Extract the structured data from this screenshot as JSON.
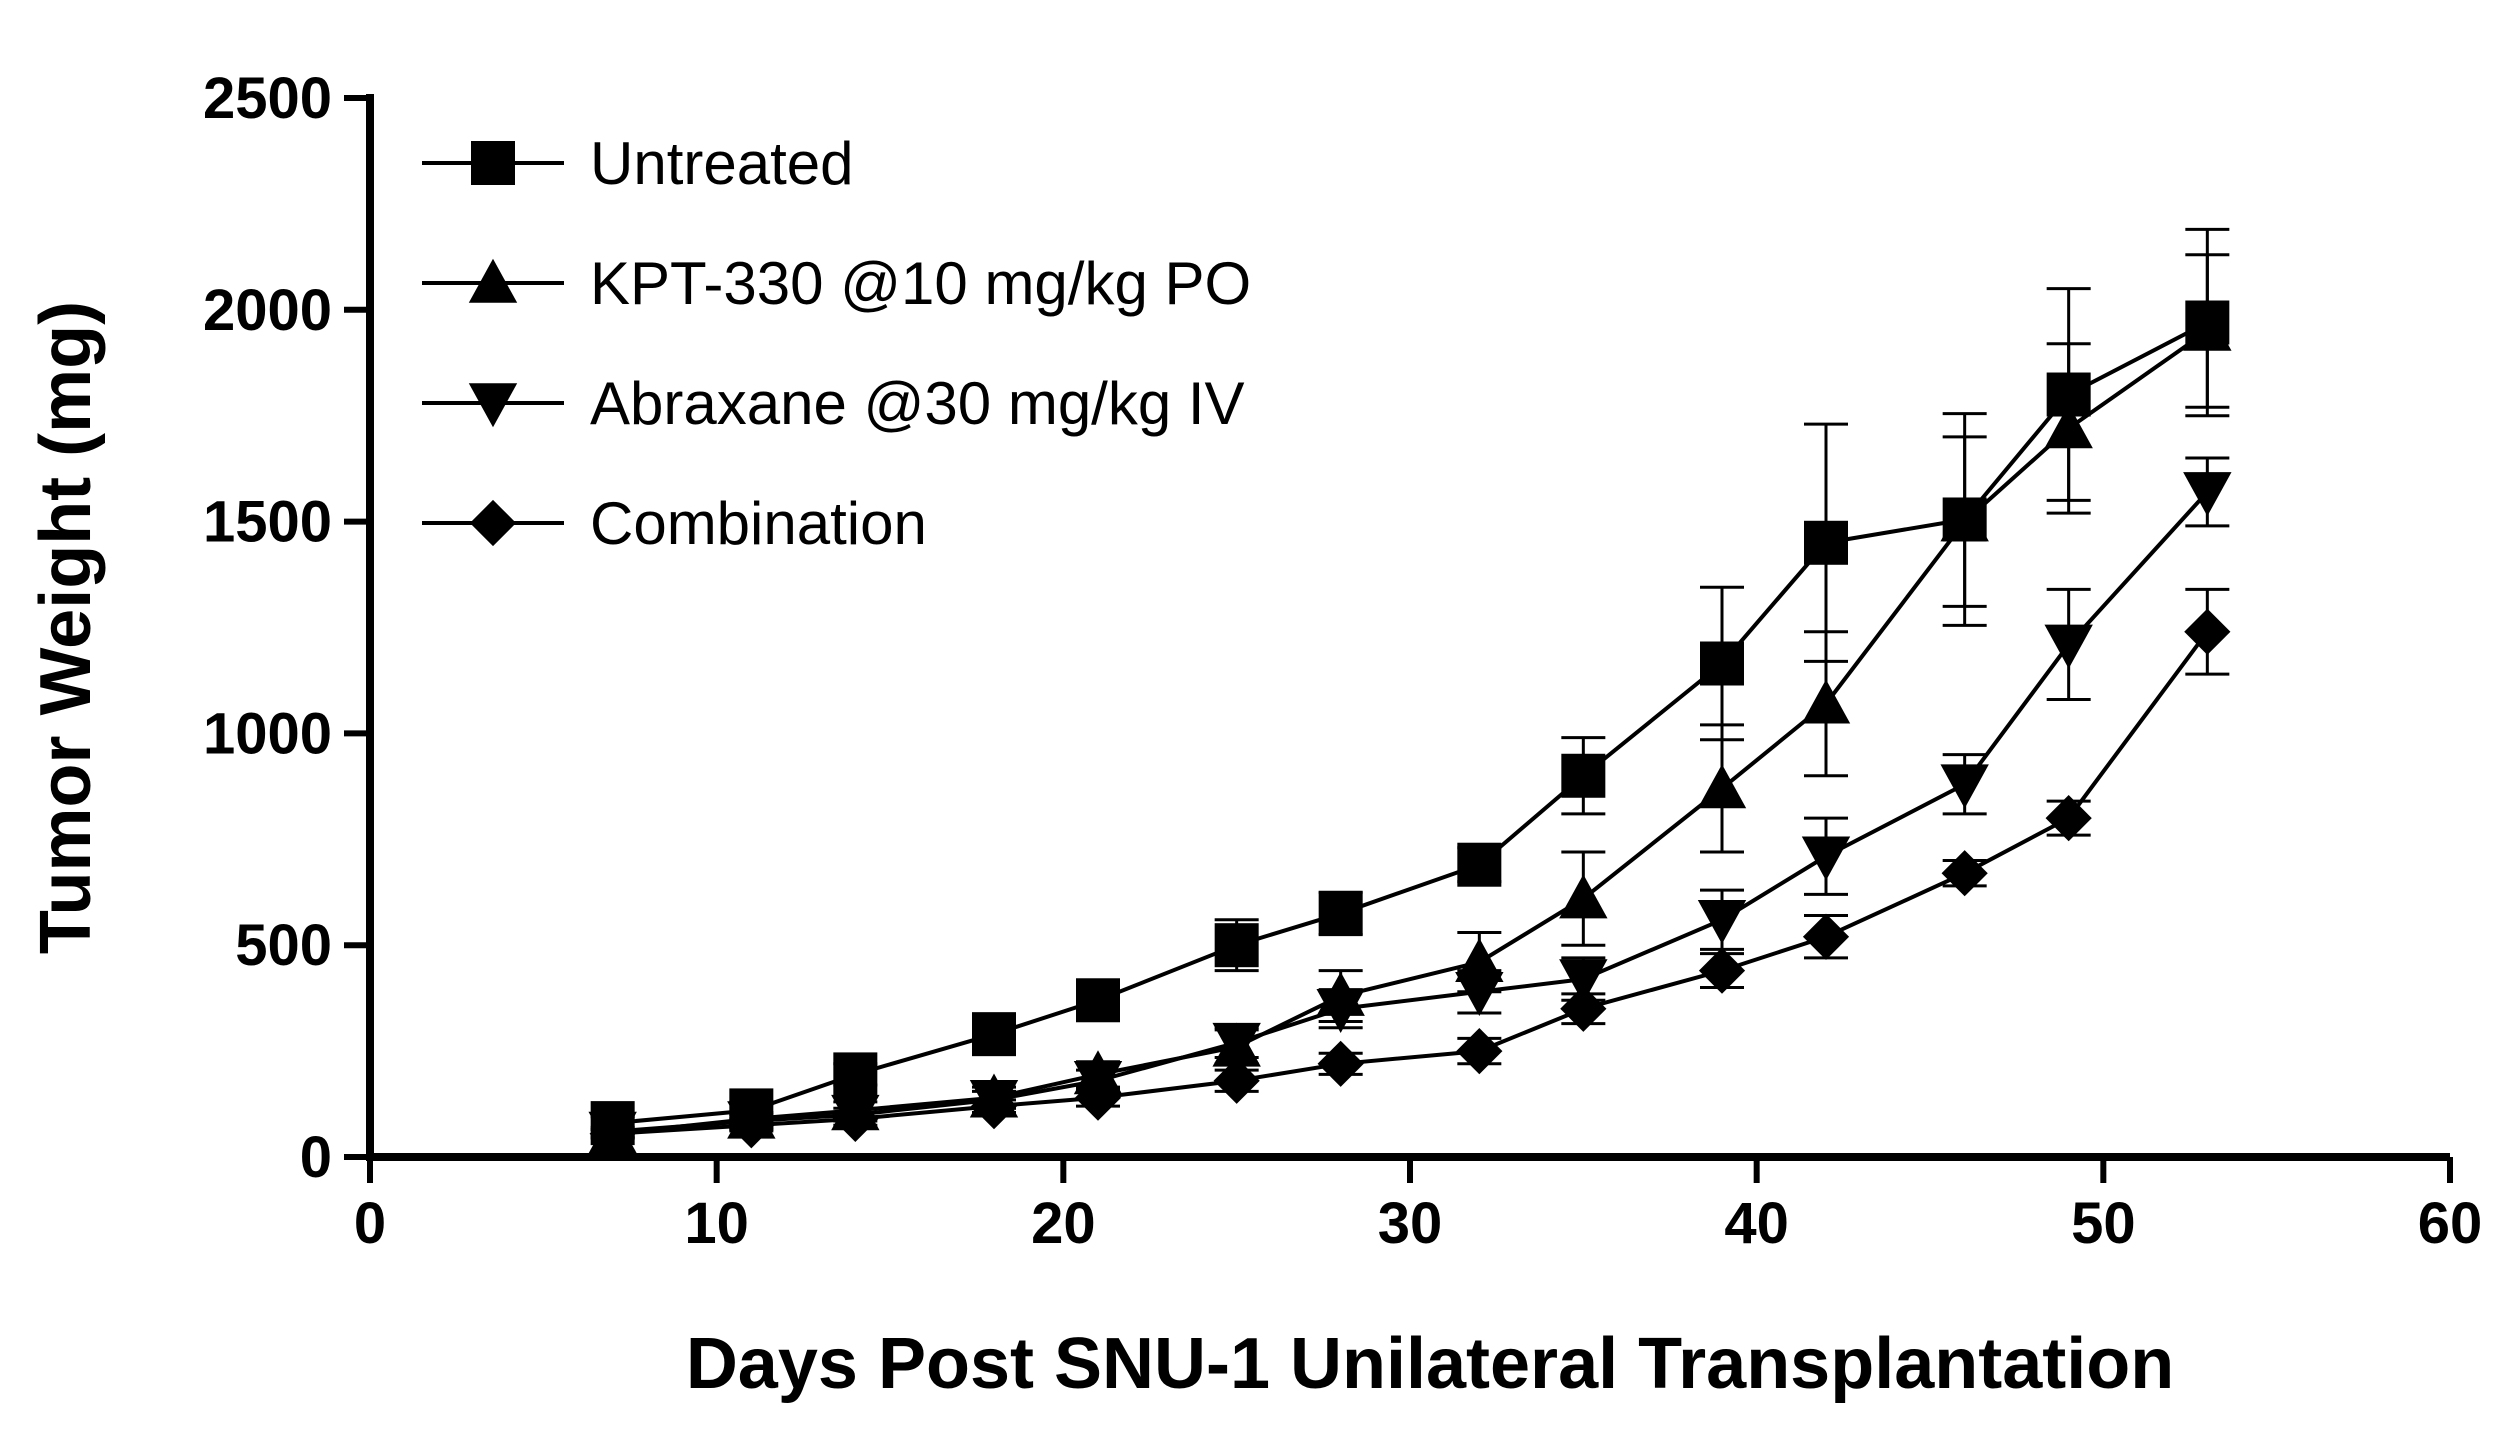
{
  "chart_data": {
    "type": "line",
    "title": "",
    "xlabel": "Days Post SNU-1 Unilateral Transplantation",
    "ylabel": "Tumor Weight (mg)",
    "xlim": [
      0,
      60
    ],
    "ylim": [
      0,
      2500
    ],
    "xticks": [
      0,
      10,
      20,
      30,
      40,
      50,
      60
    ],
    "yticks": [
      0,
      500,
      1000,
      1500,
      2000,
      2500
    ],
    "grid": false,
    "legend_position": "top-left",
    "x": [
      7,
      11,
      14,
      18,
      21,
      25,
      28,
      32,
      35,
      39,
      42,
      46,
      49,
      53
    ],
    "series": [
      {
        "name": "Untreated",
        "marker": "square",
        "values": [
          80,
          110,
          195,
          290,
          370,
          500,
          575,
          690,
          900,
          1165,
          1450,
          1505,
          1800,
          1970
        ],
        "errors": [
          15,
          20,
          25,
          30,
          40,
          60,
          50,
          40,
          90,
          180,
          280,
          250,
          250,
          220
        ]
      },
      {
        "name": "KPT-330 @10 mg/kg PO",
        "marker": "triangle-up",
        "values": [
          55,
          90,
          110,
          140,
          195,
          260,
          380,
          460,
          610,
          870,
          1070,
          1500,
          1720,
          1950
        ],
        "errors": [
          10,
          15,
          20,
          25,
          30,
          40,
          60,
          70,
          110,
          150,
          170,
          200,
          200,
          180
        ]
      },
      {
        "name": "Abraxane @30 mg/kg IV",
        "marker": "triangle-down",
        "values": [
          60,
          85,
          100,
          135,
          180,
          270,
          350,
          390,
          420,
          560,
          710,
          880,
          1210,
          1570
        ],
        "errors": [
          10,
          15,
          15,
          20,
          25,
          35,
          45,
          50,
          50,
          70,
          90,
          70,
          130,
          80
        ]
      },
      {
        "name": "Combination",
        "marker": "diamond",
        "values": [
          55,
          75,
          90,
          120,
          140,
          180,
          220,
          250,
          350,
          440,
          520,
          670,
          800,
          1240
        ],
        "errors": [
          10,
          10,
          15,
          15,
          20,
          25,
          25,
          30,
          35,
          40,
          50,
          30,
          40,
          100
        ]
      }
    ]
  }
}
